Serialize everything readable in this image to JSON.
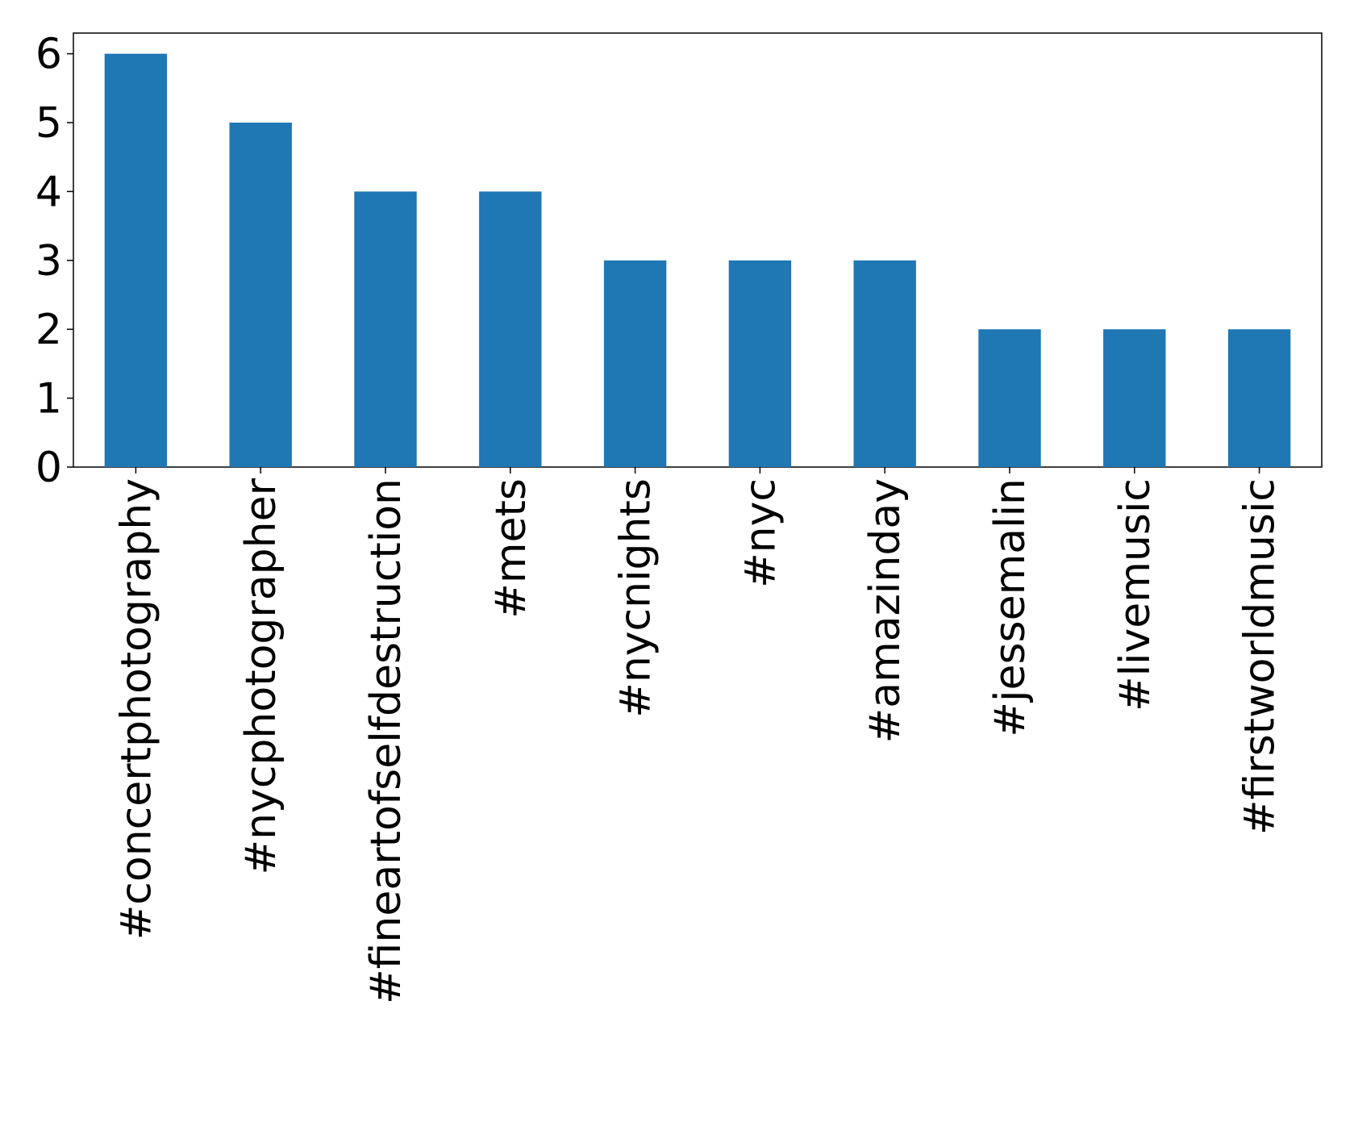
{
  "chart_data": {
    "type": "bar",
    "categories": [
      "#concertphotography",
      "#nycphotographer",
      "#fineartofselfdestruction",
      "#mets",
      "#nycnights",
      "#nyc",
      "#amazinday",
      "#jessemalin",
      "#livemusic",
      "#firstworldmusic"
    ],
    "values": [
      6,
      5,
      4,
      4,
      3,
      3,
      3,
      2,
      2,
      2
    ],
    "color": "#1f77b4",
    "ylim": [
      0,
      6.3
    ],
    "yticks": [
      0,
      1,
      2,
      3,
      4,
      5,
      6
    ],
    "grid": false
  }
}
